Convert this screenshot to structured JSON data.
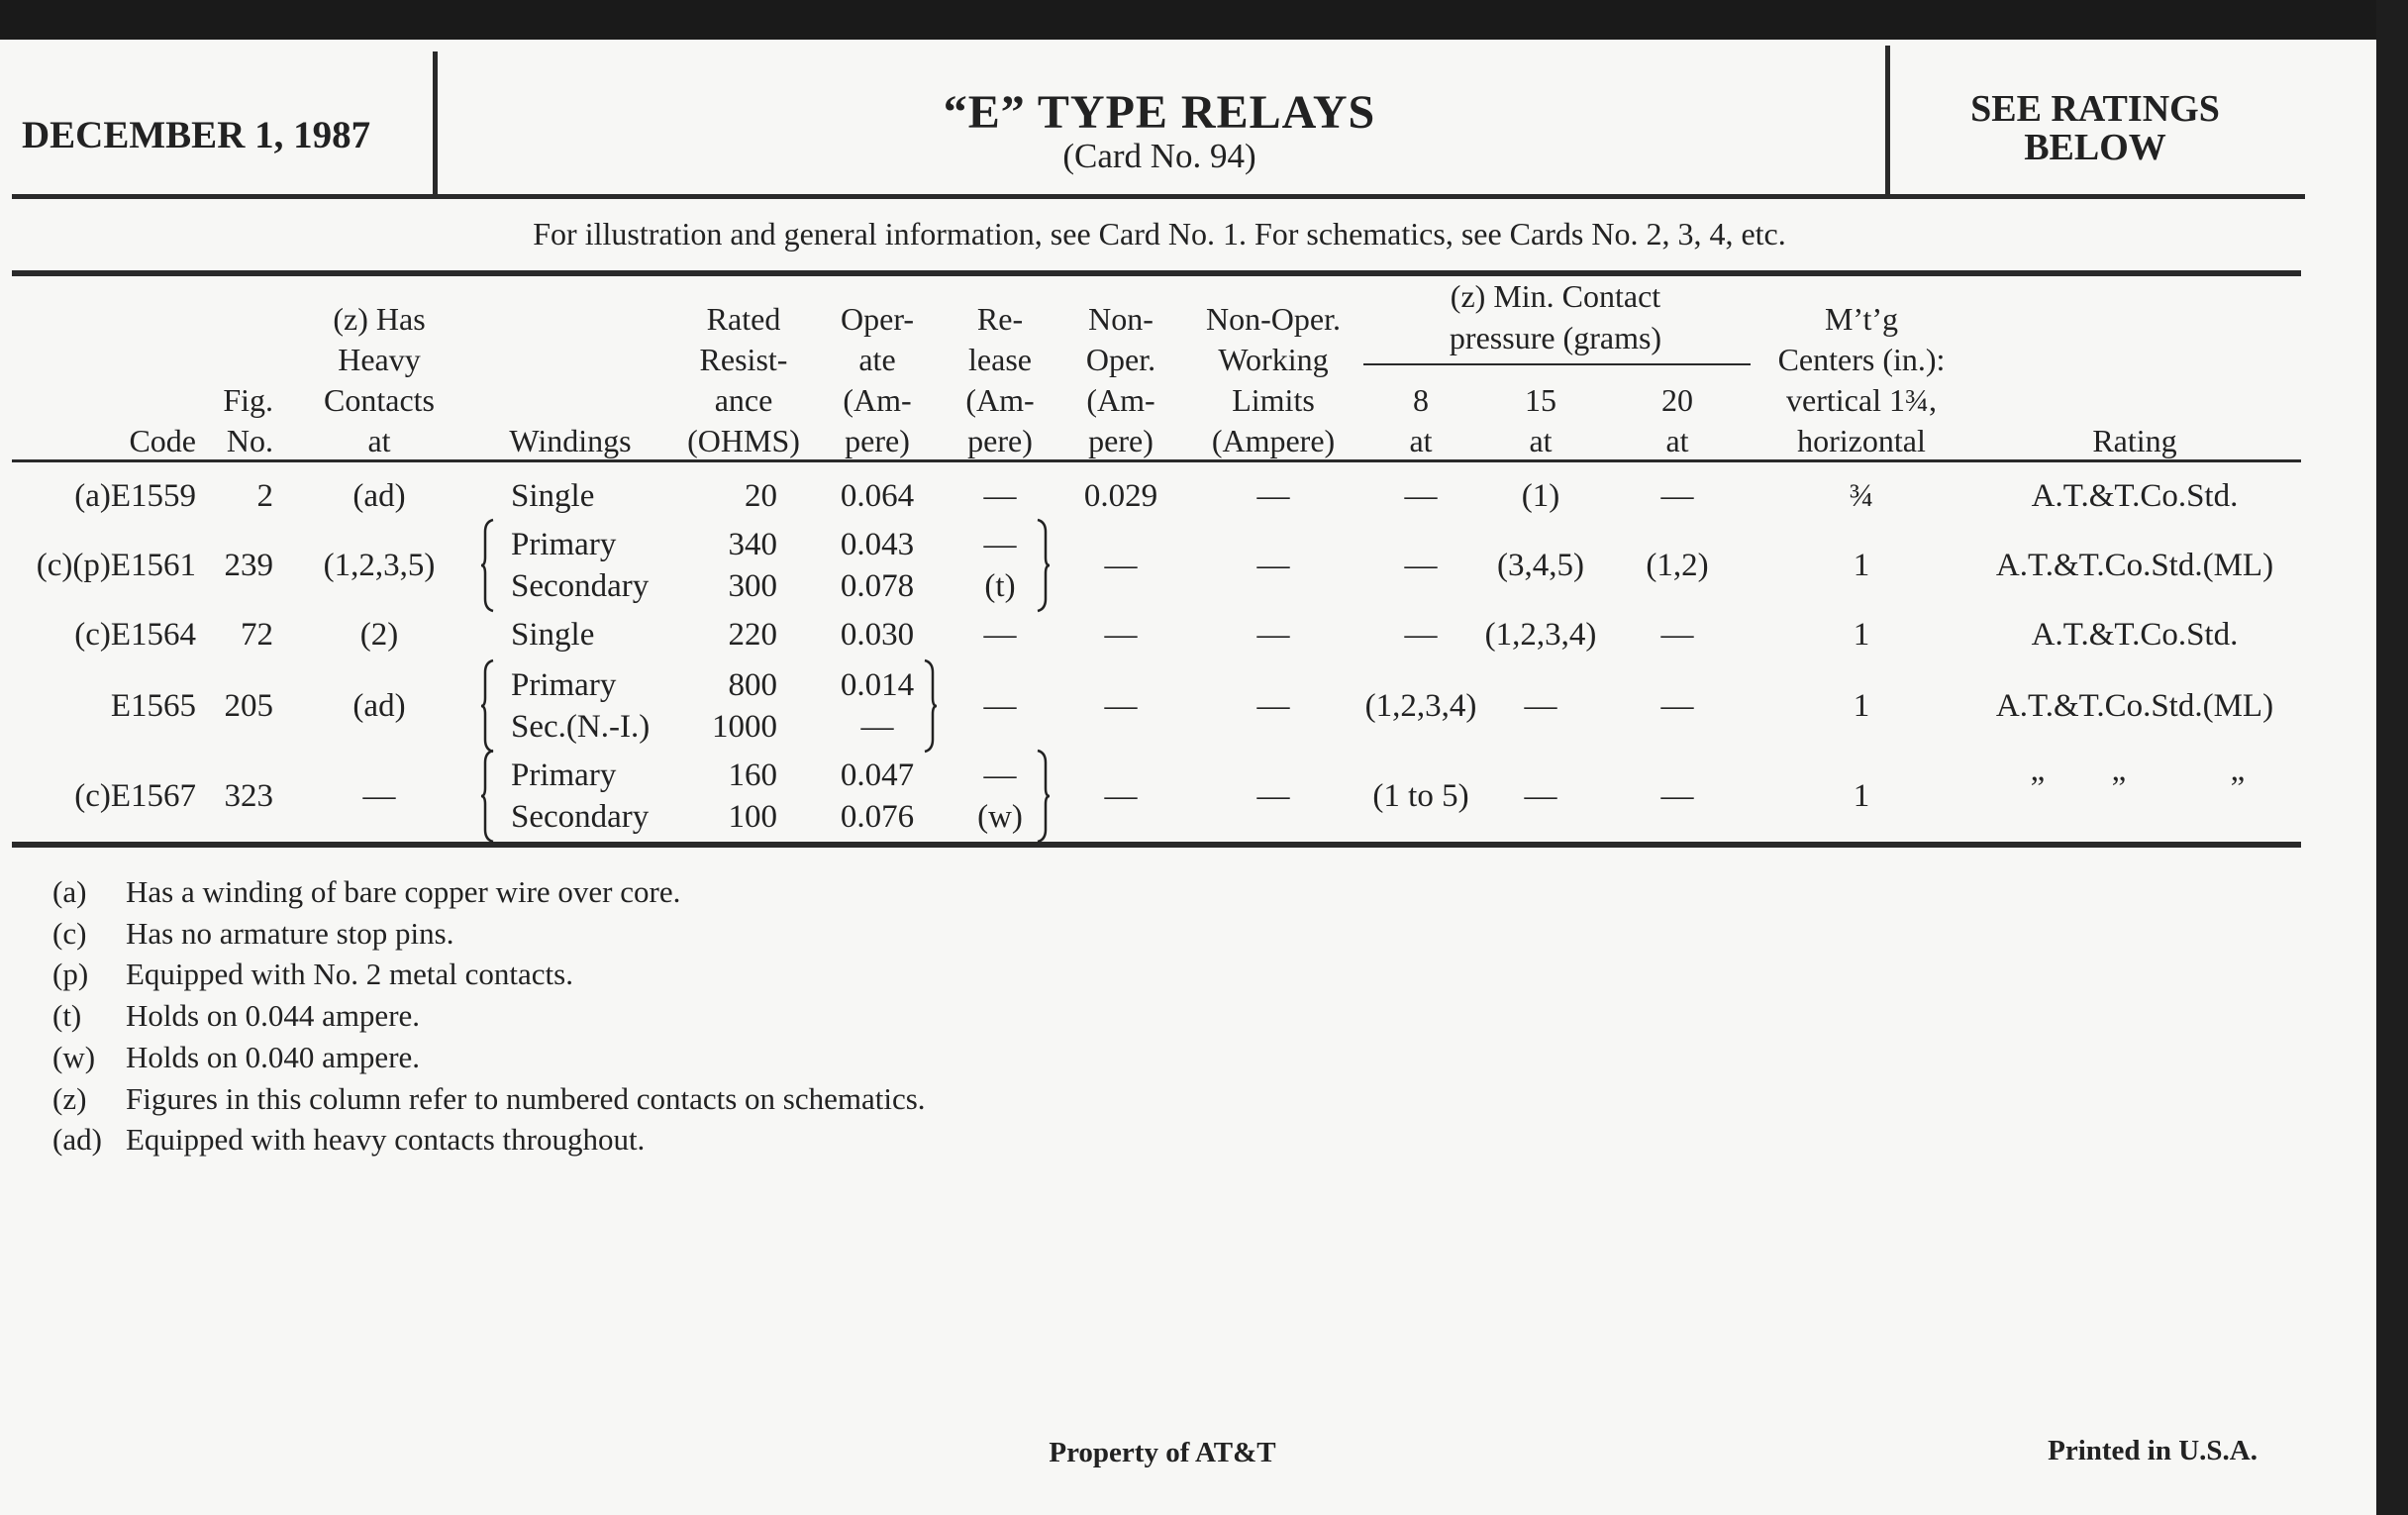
{
  "header": {
    "date": "DECEMBER 1, 1987",
    "title": "“E” TYPE RELAYS",
    "card": "(Card No. 94)",
    "ratings_line1": "SEE RATINGS",
    "ratings_line2": "BELOW",
    "info": "For illustration and general information, see Card No. 1. For schematics, see Cards No. 2, 3, 4, etc."
  },
  "columns": {
    "code": [
      "Code"
    ],
    "fig": [
      "Fig.",
      "No."
    ],
    "contacts": [
      "(z) Has",
      "Heavy",
      "Contacts",
      "at"
    ],
    "windings": [
      "Windings"
    ],
    "resistance": [
      "Rated",
      "Resist-",
      "ance",
      "(OHMS)"
    ],
    "operate": [
      "Oper-",
      "ate",
      "(Am-",
      "pere)"
    ],
    "release": [
      "Re-",
      "lease",
      "(Am-",
      "pere)"
    ],
    "non_oper": [
      "Non-",
      "Oper.",
      "(Am-",
      "pere)"
    ],
    "working": [
      "Non-Oper.",
      "Working",
      "Limits",
      "(Ampere)"
    ],
    "pressure_group": [
      "(z) Min. Contact",
      "pressure (grams)"
    ],
    "at8": [
      "8",
      "at"
    ],
    "at15": [
      "15",
      "at"
    ],
    "at20": [
      "20",
      "at"
    ],
    "mtg": [
      "M’t’g",
      "Centers (in.):",
      "vertical 1¾,",
      "horizontal"
    ],
    "rating": [
      "Rating"
    ]
  },
  "rows": [
    {
      "code": "(a)E1559",
      "fig": "2",
      "contacts": "(ad)",
      "windings": [
        {
          "name": "Single",
          "resistance": "20",
          "operate": "0.064",
          "release": "—"
        }
      ],
      "non_oper": "0.029",
      "working": "—",
      "at8": "—",
      "at15": "(1)",
      "at20": "—",
      "mtg": "¾",
      "rating": [
        "A.T.&T.Co.Std."
      ]
    },
    {
      "code": "(c)(p)E1561",
      "fig": "239",
      "contacts": "(1,2,3,5)",
      "windings": [
        {
          "name": "Primary",
          "resistance": "340",
          "operate": "0.043",
          "release": "—"
        },
        {
          "name": "Secondary",
          "resistance": "300",
          "operate": "0.078",
          "release": "(t)"
        }
      ],
      "group_brace": "release",
      "non_oper": "—",
      "working": "—",
      "at8": "—",
      "at15": "(3,4,5)",
      "at20": "(1,2)",
      "mtg": "1",
      "rating": [
        "A.T.&T.Co.Std.(ML)"
      ]
    },
    {
      "code": "(c)E1564",
      "fig": "72",
      "contacts": "(2)",
      "windings": [
        {
          "name": "Single",
          "resistance": "220",
          "operate": "0.030",
          "release": "—"
        }
      ],
      "non_oper": "—",
      "working": "—",
      "at8": "—",
      "at15": "(1,2,3,4)",
      "at20": "—",
      "mtg": "1",
      "rating": [
        "A.T.&T.Co.Std."
      ]
    },
    {
      "code": "E1565",
      "fig": "205",
      "contacts": "(ad)",
      "windings": [
        {
          "name": "Primary",
          "resistance": "800",
          "operate": "0.014"
        },
        {
          "name": "Sec.(N.-I.)",
          "resistance": "1000",
          "operate": "—"
        }
      ],
      "group_brace": "operate",
      "release": "—",
      "non_oper": "—",
      "working": "—",
      "at8": "(1,2,3,4)",
      "at15": "—",
      "at20": "—",
      "mtg": "1",
      "rating": [
        "A.T.&T.Co.Std.(ML)"
      ]
    },
    {
      "code": "(c)E1567",
      "fig": "323",
      "contacts": "—",
      "windings": [
        {
          "name": "Primary",
          "resistance": "160",
          "operate": "0.047",
          "release": "—"
        },
        {
          "name": "Secondary",
          "resistance": "100",
          "operate": "0.076",
          "release": "(w)"
        }
      ],
      "group_brace": "release",
      "non_oper": "—",
      "working": "—",
      "at8": "(1 to 5)",
      "at15": "—",
      "at20": "—",
      "mtg": "1",
      "rating": [
        "”",
        "”",
        "”"
      ]
    }
  ],
  "footnotes": [
    {
      "key": "(a)",
      "text": "Has a winding of bare copper wire over core."
    },
    {
      "key": "(c)",
      "text": "Has no armature stop pins."
    },
    {
      "key": "(p)",
      "text": "Equipped with No. 2 metal contacts."
    },
    {
      "key": "(t)",
      "text": "Holds on 0.044 ampere."
    },
    {
      "key": "(w)",
      "text": "Holds on 0.040 ampere."
    },
    {
      "key": "(z)",
      "text": "Figures in this column refer to numbered contacts on schematics."
    },
    {
      "key": "(ad)",
      "text": "Equipped with heavy contacts throughout."
    }
  ],
  "footer": {
    "property": "Property of AT&T",
    "printed": "Printed in U.S.A."
  }
}
